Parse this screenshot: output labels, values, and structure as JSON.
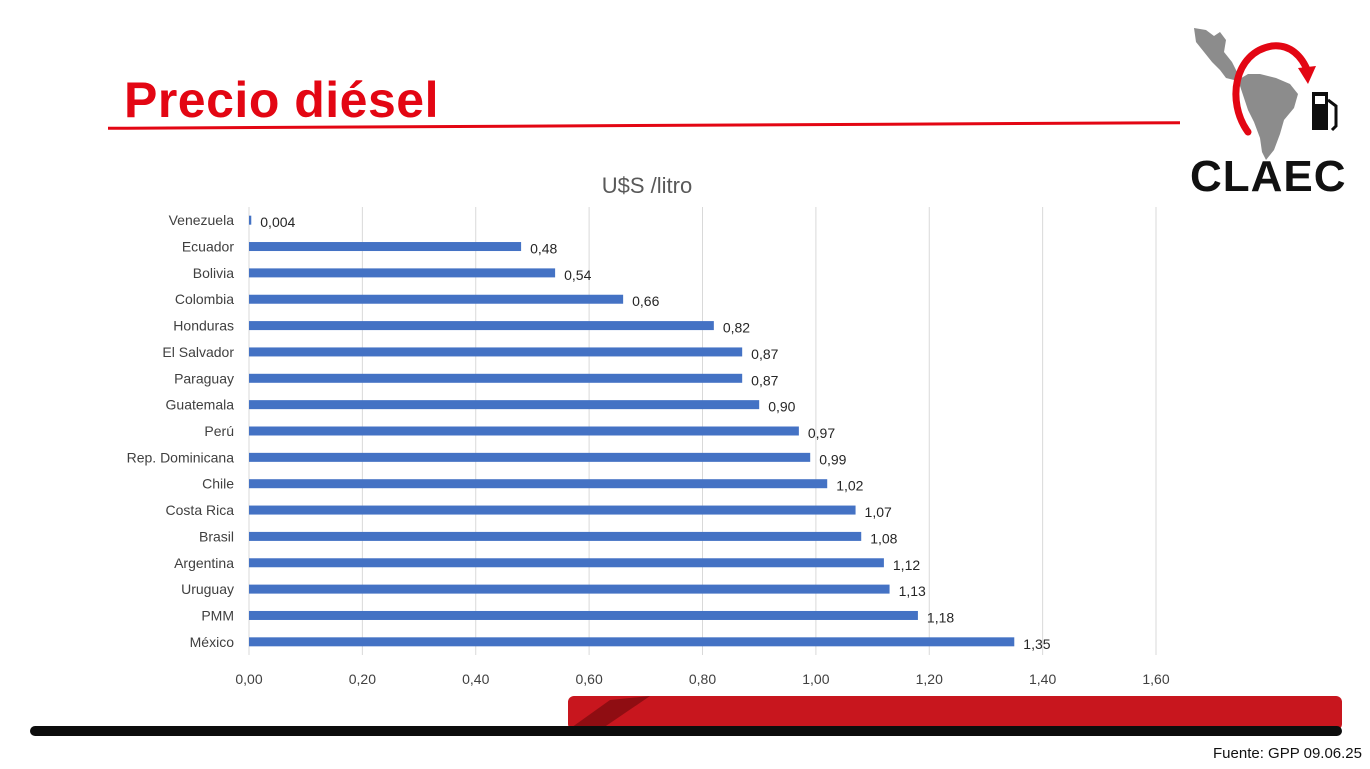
{
  "title": "Precio diésel",
  "logo": {
    "text": "CLAEC"
  },
  "source": "Fuente: GPP 09.06.25",
  "colors": {
    "accent": "#e30613",
    "bar": "#4472c4",
    "dark": "#0d0d0d",
    "grid": "#d9d9d9",
    "text": "#404040"
  },
  "chart_data": {
    "type": "bar",
    "orientation": "horizontal",
    "title": "U$S /litro",
    "xlabel": "",
    "ylabel": "",
    "xlim": [
      0,
      1.6
    ],
    "xticks": [
      "0,00",
      "0,20",
      "0,40",
      "0,60",
      "0,80",
      "1,00",
      "1,20",
      "1,40",
      "1,60"
    ],
    "grid": true,
    "categories": [
      "Venezuela",
      "Ecuador",
      "Bolivia",
      "Colombia",
      "Honduras",
      "El Salvador",
      "Paraguay",
      "Guatemala",
      "Perú",
      "Rep. Dominicana",
      "Chile",
      "Costa Rica",
      "Brasil",
      "Argentina",
      "Uruguay",
      "PMM",
      "México"
    ],
    "values": [
      0.004,
      0.48,
      0.54,
      0.66,
      0.82,
      0.87,
      0.87,
      0.9,
      0.97,
      0.99,
      1.02,
      1.07,
      1.08,
      1.12,
      1.13,
      1.18,
      1.35
    ],
    "labels": [
      "0,004",
      "0,48",
      "0,54",
      "0,66",
      "0,82",
      "0,87",
      "0,87",
      "0,90",
      "0,97",
      "0,99",
      "1,02",
      "1,07",
      "1,08",
      "1,12",
      "1,13",
      "1,18",
      "1,35"
    ]
  }
}
